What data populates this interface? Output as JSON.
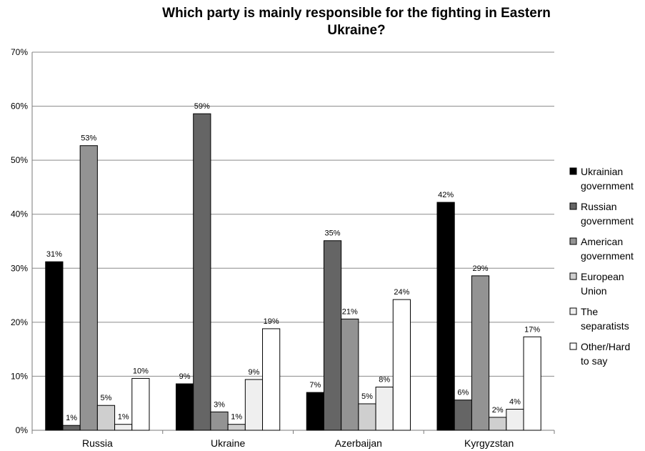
{
  "chart_data": {
    "type": "bar",
    "title_lines": [
      "Which party is mainly responsible for the fighting in Eastern",
      "Ukraine?"
    ],
    "categories": [
      "Russia",
      "Ukraine",
      "Azerbaijan",
      "Kyrgyzstan"
    ],
    "ylim": [
      0,
      70
    ],
    "yticks": [
      0,
      10,
      20,
      30,
      40,
      50,
      60,
      70
    ],
    "ytick_labels": [
      "0%",
      "10%",
      "20%",
      "30%",
      "40%",
      "50%",
      "60%",
      "70%"
    ],
    "grid": true,
    "legend_position": "right",
    "series": [
      {
        "name": "Ukrainian government",
        "legend_lines": [
          "Ukrainian",
          "government"
        ],
        "color": "#000000",
        "values": [
          31.2,
          8.6,
          7.0,
          42.2
        ],
        "labels": [
          "31%",
          "9%",
          "7%",
          "42%"
        ]
      },
      {
        "name": "Russian government",
        "legend_lines": [
          "Russian",
          "government"
        ],
        "color": "#656565",
        "values": [
          0.9,
          58.6,
          35.1,
          5.6
        ],
        "labels": [
          "1%",
          "59%",
          "35%",
          "6%"
        ]
      },
      {
        "name": "American government",
        "legend_lines": [
          "American",
          "government"
        ],
        "color": "#939393",
        "values": [
          52.7,
          3.4,
          20.6,
          28.6
        ],
        "labels": [
          "53%",
          "3%",
          "21%",
          "29%"
        ]
      },
      {
        "name": "European Union",
        "legend_lines": [
          "European",
          "Union"
        ],
        "color": "#cfcfcf",
        "values": [
          4.6,
          1.1,
          4.9,
          2.4
        ],
        "labels": [
          "5%",
          "1%",
          "5%",
          "2%"
        ]
      },
      {
        "name": "The separatists",
        "legend_lines": [
          "The",
          "separatists"
        ],
        "color": "#efefef",
        "values": [
          1.1,
          9.4,
          8.0,
          3.9
        ],
        "labels": [
          "1%",
          "9%",
          "8%",
          "4%"
        ]
      },
      {
        "name": "Other/Hard to say",
        "legend_lines": [
          "Other/Hard",
          "to say"
        ],
        "color": "#ffffff",
        "values": [
          9.6,
          18.8,
          24.2,
          17.3
        ],
        "labels": [
          "10%",
          "19%",
          "24%",
          "17%"
        ]
      }
    ]
  }
}
